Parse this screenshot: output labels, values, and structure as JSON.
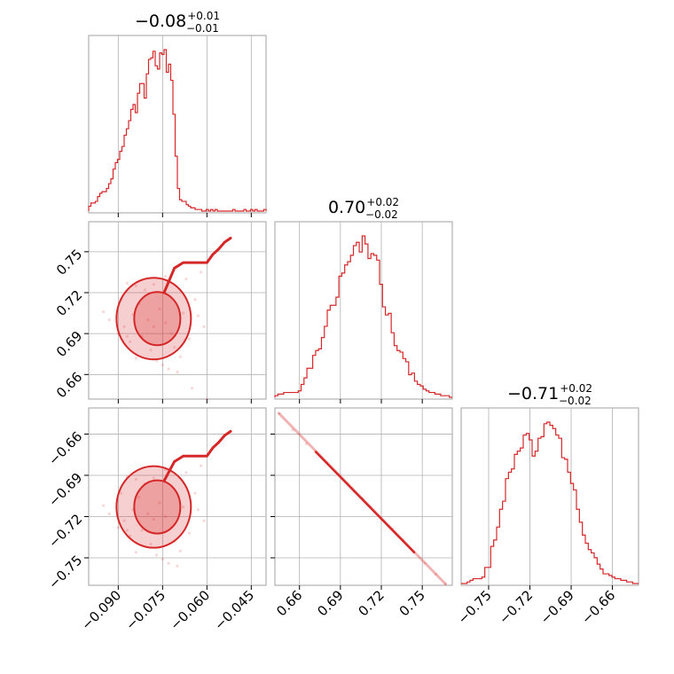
{
  "chart_data": {
    "type": "corner",
    "color": "#d62728",
    "parameters": [
      {
        "name": "",
        "median_label": "−0.08",
        "plus": "+0.01",
        "minus": "−0.01",
        "range": [
          -0.1,
          -0.04
        ]
      },
      {
        "name": "",
        "median_label": "0.70",
        "plus": "+0.02",
        "minus": "−0.02",
        "range": [
          0.642,
          0.772
        ]
      },
      {
        "name": "",
        "median_label": "−0.71",
        "plus": "+0.02",
        "minus": "−0.02",
        "range": [
          -0.77,
          -0.641
        ]
      }
    ],
    "axes": {
      "x_ticks": {
        "p0": [
          -0.09,
          -0.075,
          -0.06,
          -0.045
        ],
        "p1": [
          0.66,
          0.69,
          0.72,
          0.75
        ],
        "p2": [
          -0.75,
          -0.72,
          -0.69,
          -0.66
        ]
      },
      "x_tick_labels": {
        "p0": [
          "−0.090",
          "−0.075",
          "−0.060",
          "−0.045"
        ],
        "p1": [
          "0.66",
          "0.69",
          "0.72",
          "0.75"
        ],
        "p2": [
          "−0.75",
          "−0.72",
          "−0.69",
          "−0.66"
        ]
      },
      "y_ticks": {
        "p1": [
          0.66,
          0.69,
          0.72,
          0.75
        ],
        "p2": [
          -0.66,
          -0.69,
          -0.72,
          -0.75
        ]
      },
      "y_tick_labels": {
        "p1": [
          "0.66",
          "0.69",
          "0.72",
          "0.75"
        ],
        "p2": [
          "−0.66",
          "−0.69",
          "−0.72",
          "−0.75"
        ]
      },
      "grid": true
    },
    "histograms": [
      {
        "param": 0,
        "counts": [
          3,
          5,
          5,
          6,
          9,
          11,
          12,
          12,
          14,
          17,
          20,
          26,
          30,
          32,
          37,
          40,
          47,
          51,
          56,
          63,
          66,
          61,
          73,
          79,
          79,
          70,
          85,
          94,
          95,
          99,
          90,
          88,
          98,
          97,
          100,
          86,
          91,
          81,
          60,
          34,
          14,
          7,
          6,
          6,
          4,
          3,
          2,
          2,
          1,
          1,
          1,
          0,
          0,
          1,
          0,
          1,
          0,
          1,
          0,
          0,
          0,
          0,
          0,
          0,
          0,
          1,
          0,
          0,
          0,
          0,
          1,
          0,
          0,
          1,
          0,
          1,
          0,
          0,
          0,
          1
        ]
      },
      {
        "param": 1,
        "counts": [
          1,
          2,
          2,
          3,
          3,
          3,
          3,
          3,
          4,
          8,
          12,
          18,
          18,
          26,
          29,
          30,
          37,
          44,
          54,
          57,
          57,
          62,
          75,
          77,
          82,
          84,
          88,
          94,
          96,
          90,
          100,
          95,
          86,
          89,
          88,
          85,
          70,
          56,
          51,
          52,
          40,
          32,
          29,
          28,
          24,
          22,
          14,
          15,
          10,
          8,
          7,
          5,
          4,
          3,
          3,
          2,
          2,
          1,
          1,
          1,
          0
        ]
      },
      {
        "param": 2,
        "counts": [
          0,
          0,
          1,
          2,
          3,
          3,
          3,
          4,
          10,
          10,
          23,
          27,
          35,
          46,
          51,
          65,
          69,
          71,
          80,
          82,
          84,
          92,
          93,
          89,
          79,
          82,
          90,
          91,
          99,
          100,
          98,
          96,
          92,
          90,
          78,
          77,
          69,
          62,
          58,
          46,
          38,
          30,
          25,
          21,
          19,
          16,
          12,
          9,
          6,
          6,
          5,
          4,
          3,
          3,
          2,
          2,
          1,
          1,
          0,
          0
        ]
      }
    ],
    "scatter_2d": [
      {
        "x_param": 0,
        "y_param": 1,
        "points": [
          [
            -0.085,
            0.704
          ],
          [
            -0.083,
            0.712
          ],
          [
            -0.08,
            0.7
          ],
          [
            -0.078,
            0.695
          ],
          [
            -0.076,
            0.708
          ],
          [
            -0.074,
            0.698
          ],
          [
            -0.072,
            0.69
          ],
          [
            -0.071,
            0.68
          ],
          [
            -0.069,
            0.673
          ],
          [
            -0.068,
            0.705
          ],
          [
            -0.066,
            0.686
          ],
          [
            -0.064,
            0.715
          ],
          [
            -0.062,
            0.735
          ],
          [
            -0.06,
            0.742
          ],
          [
            -0.058,
            0.748
          ],
          [
            -0.056,
            0.752
          ],
          [
            -0.054,
            0.757
          ],
          [
            -0.052,
            0.76
          ],
          [
            -0.088,
            0.695
          ],
          [
            -0.09,
            0.69
          ],
          [
            -0.086,
            0.684
          ],
          [
            -0.082,
            0.688
          ],
          [
            -0.079,
            0.678
          ],
          [
            -0.077,
            0.67
          ],
          [
            -0.075,
            0.667
          ],
          [
            -0.073,
            0.664
          ],
          [
            -0.07,
            0.662
          ],
          [
            -0.081,
            0.722
          ],
          [
            -0.078,
            0.726
          ],
          [
            -0.074,
            0.732
          ],
          [
            -0.071,
            0.738
          ],
          [
            -0.068,
            0.742
          ],
          [
            -0.093,
            0.7
          ],
          [
            -0.095,
            0.706
          ],
          [
            -0.089,
            0.715
          ],
          [
            -0.087,
            0.688
          ],
          [
            -0.084,
            0.672
          ],
          [
            -0.065,
            0.65
          ],
          [
            -0.06,
            0.642
          ],
          [
            -0.084,
            0.725
          ],
          [
            -0.087,
            0.727
          ],
          [
            -0.067,
            0.73
          ],
          [
            -0.063,
            0.703
          ],
          [
            -0.061,
            0.695
          ]
        ]
      },
      {
        "x_param": 0,
        "y_param": 2,
        "points": [
          [
            -0.085,
            -0.715
          ],
          [
            -0.083,
            -0.706
          ],
          [
            -0.08,
            -0.718
          ],
          [
            -0.078,
            -0.722
          ],
          [
            -0.076,
            -0.71
          ],
          [
            -0.074,
            -0.72
          ],
          [
            -0.072,
            -0.728
          ],
          [
            -0.071,
            -0.738
          ],
          [
            -0.069,
            -0.745
          ],
          [
            -0.068,
            -0.713
          ],
          [
            -0.066,
            -0.732
          ],
          [
            -0.064,
            -0.703
          ],
          [
            -0.062,
            -0.683
          ],
          [
            -0.06,
            -0.676
          ],
          [
            -0.058,
            -0.67
          ],
          [
            -0.056,
            -0.666
          ],
          [
            -0.054,
            -0.661
          ],
          [
            -0.052,
            -0.658
          ],
          [
            -0.088,
            -0.723
          ],
          [
            -0.09,
            -0.728
          ],
          [
            -0.086,
            -0.734
          ],
          [
            -0.082,
            -0.73
          ],
          [
            -0.079,
            -0.74
          ],
          [
            -0.077,
            -0.748
          ],
          [
            -0.075,
            -0.751
          ],
          [
            -0.073,
            -0.754
          ],
          [
            -0.07,
            -0.756
          ],
          [
            -0.081,
            -0.696
          ],
          [
            -0.078,
            -0.692
          ],
          [
            -0.074,
            -0.686
          ],
          [
            -0.071,
            -0.68
          ],
          [
            -0.068,
            -0.676
          ],
          [
            -0.093,
            -0.718
          ],
          [
            -0.095,
            -0.712
          ],
          [
            -0.089,
            -0.703
          ],
          [
            -0.087,
            -0.73
          ],
          [
            -0.084,
            -0.746
          ],
          [
            -0.084,
            -0.693
          ],
          [
            -0.087,
            -0.691
          ],
          [
            -0.067,
            -0.688
          ],
          [
            -0.063,
            -0.715
          ],
          [
            -0.061,
            -0.723
          ]
        ]
      },
      {
        "x_param": 1,
        "y_param": 2,
        "points": [
          [
            0.645,
            -0.645
          ],
          [
            0.655,
            -0.657
          ],
          [
            0.665,
            -0.667
          ],
          [
            0.672,
            -0.673
          ],
          [
            0.68,
            -0.681
          ],
          [
            0.688,
            -0.689
          ],
          [
            0.695,
            -0.696
          ],
          [
            0.7,
            -0.702
          ],
          [
            0.706,
            -0.707
          ],
          [
            0.712,
            -0.713
          ],
          [
            0.72,
            -0.722
          ],
          [
            0.728,
            -0.729
          ],
          [
            0.736,
            -0.737
          ],
          [
            0.744,
            -0.746
          ],
          [
            0.752,
            -0.754
          ],
          [
            0.76,
            -0.762
          ],
          [
            0.767,
            -0.769
          ]
        ]
      }
    ]
  }
}
